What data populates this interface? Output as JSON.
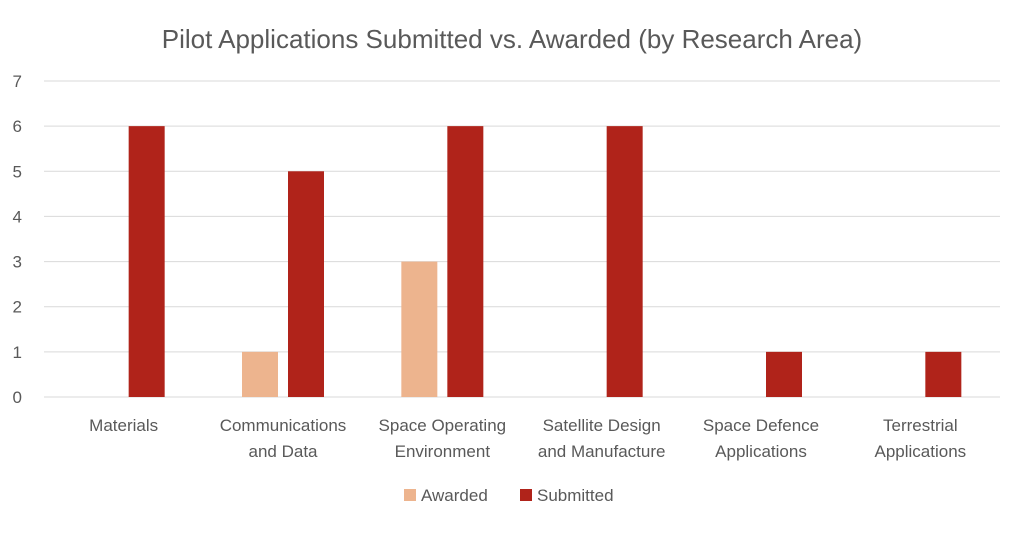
{
  "chart_data": {
    "type": "bar",
    "title": "Pilot Applications Submitted vs. Awarded (by Research Area)",
    "categories": [
      [
        "Materials"
      ],
      [
        "Communications",
        "and Data"
      ],
      [
        "Space Operating",
        "Environment"
      ],
      [
        "Satellite Design",
        "and Manufacture"
      ],
      [
        "Space Defence",
        "Applications"
      ],
      [
        "Terrestrial",
        "Applications"
      ]
    ],
    "series": [
      {
        "name": "Awarded",
        "color": "#EDB48E",
        "values": [
          0,
          1,
          3,
          0,
          0,
          0
        ]
      },
      {
        "name": "Submitted",
        "color": "#B0231A",
        "values": [
          6,
          5,
          6,
          6,
          1,
          1
        ]
      }
    ],
    "ylim": [
      0,
      7
    ],
    "yticks": [
      0,
      1,
      2,
      3,
      4,
      5,
      6,
      7
    ],
    "grid": true,
    "legend": "bottom-center"
  }
}
